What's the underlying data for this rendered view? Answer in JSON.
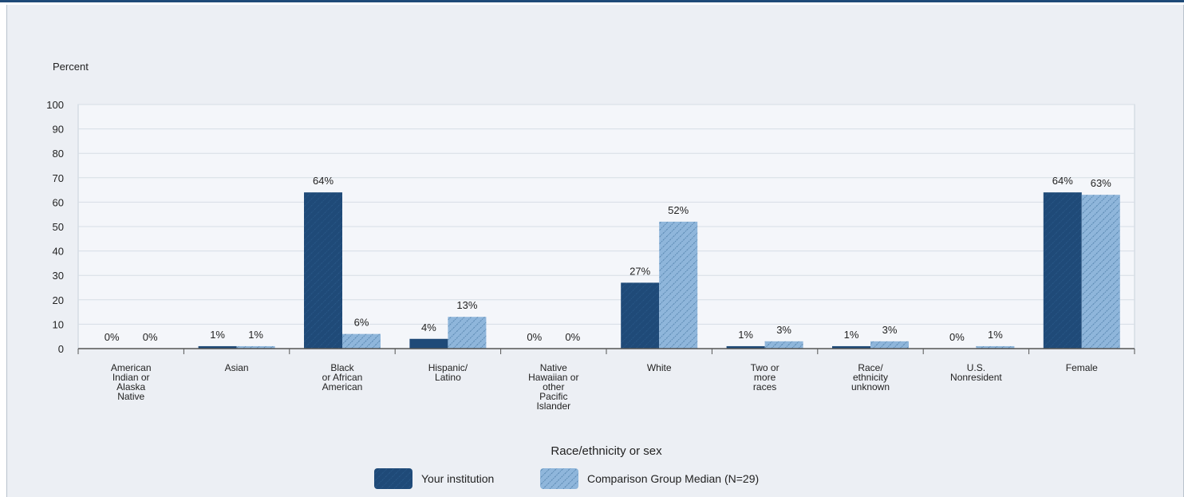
{
  "chart_data": {
    "type": "bar",
    "ylabel": "Percent",
    "xlabel": "Race/ethnicity or sex",
    "ylim": [
      0,
      100
    ],
    "yticks": [
      0,
      10,
      20,
      30,
      40,
      50,
      60,
      70,
      80,
      90,
      100
    ],
    "grid": true,
    "legend_position": "bottom",
    "categories": [
      [
        "American",
        "Indian or",
        "Alaska",
        "Native"
      ],
      [
        "Asian"
      ],
      [
        "Black",
        "or African",
        "American"
      ],
      [
        "Hispanic/",
        "Latino"
      ],
      [
        "Native",
        "Hawaiian or",
        "other",
        "Pacific",
        "Islander"
      ],
      [
        "White"
      ],
      [
        "Two or",
        "more",
        "races"
      ],
      [
        "Race/",
        "ethnicity",
        "unknown"
      ],
      [
        "U.S.",
        "Nonresident"
      ],
      [
        "Female"
      ]
    ],
    "series": [
      {
        "name": "Your institution",
        "color": "#1f4a78",
        "values": [
          0,
          1,
          64,
          4,
          0,
          27,
          1,
          1,
          0,
          64
        ],
        "labels": [
          "0%",
          "1%",
          "64%",
          "4%",
          "0%",
          "27%",
          "1%",
          "1%",
          "0%",
          "64%"
        ]
      },
      {
        "name": "Comparison Group Median (N=29)",
        "color": "#8fb6db",
        "values": [
          0,
          1,
          6,
          13,
          0,
          52,
          3,
          3,
          1,
          63
        ],
        "labels": [
          "0%",
          "1%",
          "6%",
          "13%",
          "0%",
          "52%",
          "3%",
          "3%",
          "1%",
          "63%"
        ]
      }
    ]
  }
}
